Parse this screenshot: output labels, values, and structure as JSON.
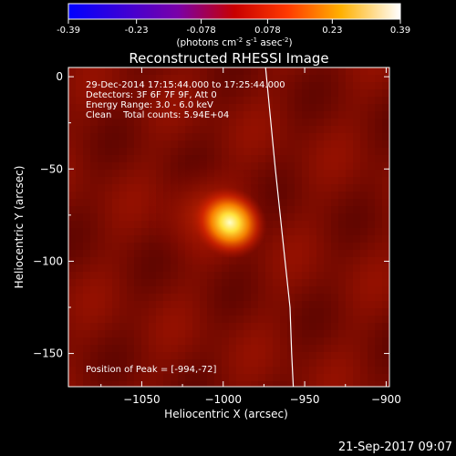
{
  "chart_data": {
    "type": "heatmap",
    "title": "Reconstructed RHESSI Image",
    "colorbar": {
      "ticks": [
        "-0.39",
        "-0.23",
        "-0.078",
        "0.078",
        "0.23",
        "0.39"
      ],
      "range": [
        -0.39,
        0.39
      ],
      "unit_prefix": "(photons cm",
      "unit_exp1": "-2",
      "unit_mid": " s",
      "unit_exp2": "-1",
      "unit_mid2": " asec",
      "unit_exp3": "-2",
      "unit_suffix": ")"
    },
    "xlabel": "Heliocentric X (arcsec)",
    "ylabel": "Heliocentric Y (arcsec)",
    "xlim": [
      -1095,
      -898
    ],
    "ylim": [
      -168,
      5
    ],
    "xticks": [
      -1050,
      -1000,
      -950,
      -900
    ],
    "xtick_labels": [
      "−1050",
      "−1000",
      "−950",
      "−900"
    ],
    "yticks": [
      0,
      -50,
      -100,
      -150
    ],
    "ytick_labels": [
      "0",
      "−50",
      "−100",
      "−150"
    ],
    "annotations": [
      "29-Dec-2014 17:15:44.000 to 17:25:44.000",
      "Detectors: 3F 6F 7F 9F, Att 0",
      "Energy Range: 3.0 - 6.0 keV",
      "Clean    Total counts: 5.94E+04"
    ],
    "peak_label": "Position of Peak = [-994,-72]",
    "peak": {
      "x": -994,
      "y": -72,
      "value": 0.39
    },
    "limb": [
      [
        -974,
        5
      ],
      [
        -968,
        -50
      ],
      [
        -962,
        -100
      ],
      [
        -959,
        -125
      ],
      [
        -958,
        -150
      ],
      [
        -957,
        -168
      ]
    ]
  },
  "footer": {
    "date": "21-Sep-2017 09:07"
  }
}
